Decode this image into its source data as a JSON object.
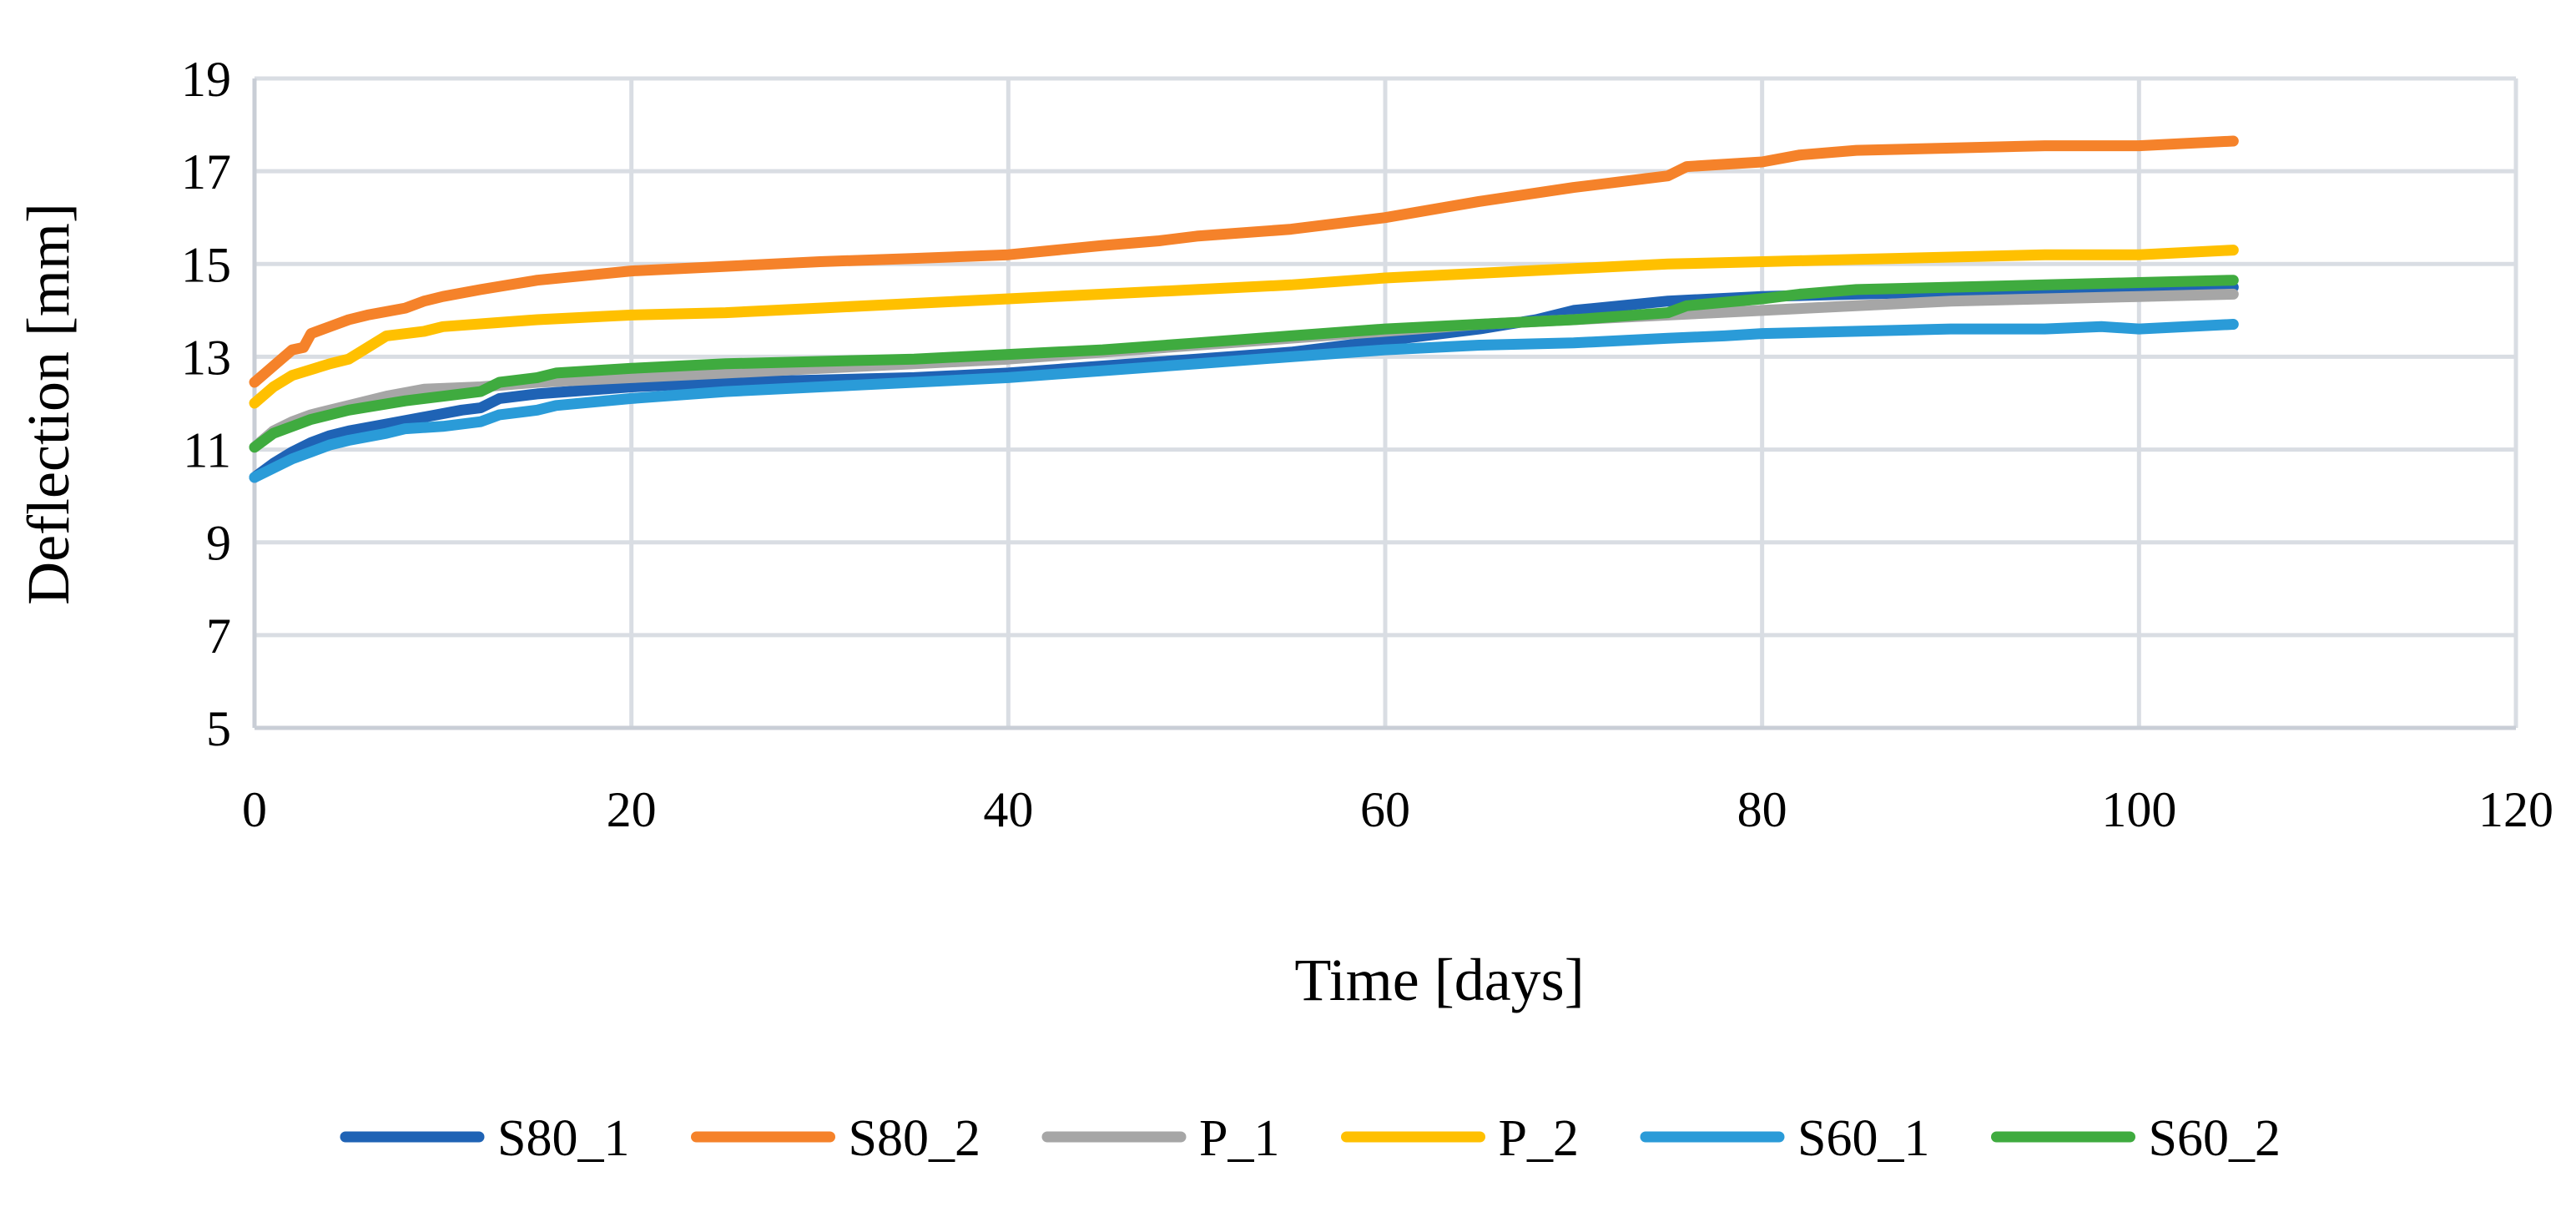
{
  "chart_data": {
    "type": "line",
    "title": "",
    "xlabel": "Time [days]",
    "ylabel": "Deflection [mm]",
    "xlim": [
      0,
      120
    ],
    "ylim": [
      5,
      19
    ],
    "xticks": [
      0,
      20,
      40,
      60,
      80,
      100,
      120
    ],
    "yticks": [
      5,
      7,
      9,
      11,
      13,
      15,
      17,
      19
    ],
    "grid": true,
    "legend_position": "bottom",
    "series": [
      {
        "name": "S80_1",
        "color": "#1f63b5",
        "points": [
          [
            0,
            10.4
          ],
          [
            1,
            10.7
          ],
          [
            2,
            10.95
          ],
          [
            3,
            11.15
          ],
          [
            4,
            11.3
          ],
          [
            5,
            11.4
          ],
          [
            7,
            11.55
          ],
          [
            9,
            11.7
          ],
          [
            11,
            11.85
          ],
          [
            12,
            11.9
          ],
          [
            13,
            12.1
          ],
          [
            15,
            12.2
          ],
          [
            20,
            12.35
          ],
          [
            25,
            12.45
          ],
          [
            30,
            12.5
          ],
          [
            35,
            12.55
          ],
          [
            40,
            12.65
          ],
          [
            45,
            12.8
          ],
          [
            50,
            12.95
          ],
          [
            55,
            13.1
          ],
          [
            60,
            13.35
          ],
          [
            65,
            13.6
          ],
          [
            68,
            13.8
          ],
          [
            70,
            14.0
          ],
          [
            75,
            14.2
          ],
          [
            80,
            14.3
          ],
          [
            85,
            14.35
          ],
          [
            90,
            14.4
          ],
          [
            95,
            14.45
          ],
          [
            100,
            14.5
          ],
          [
            105,
            14.5
          ]
        ]
      },
      {
        "name": "S80_2",
        "color": "#f5822a",
        "points": [
          [
            0,
            12.45
          ],
          [
            1,
            12.8
          ],
          [
            2,
            13.15
          ],
          [
            2.6,
            13.2
          ],
          [
            3,
            13.5
          ],
          [
            4,
            13.65
          ],
          [
            5,
            13.8
          ],
          [
            6,
            13.9
          ],
          [
            8,
            14.05
          ],
          [
            9,
            14.2
          ],
          [
            10,
            14.3
          ],
          [
            12,
            14.45
          ],
          [
            15,
            14.65
          ],
          [
            20,
            14.85
          ],
          [
            25,
            14.95
          ],
          [
            30,
            15.05
          ],
          [
            35,
            15.12
          ],
          [
            40,
            15.2
          ],
          [
            45,
            15.4
          ],
          [
            48,
            15.5
          ],
          [
            50,
            15.6
          ],
          [
            55,
            15.75
          ],
          [
            60,
            16.0
          ],
          [
            65,
            16.35
          ],
          [
            70,
            16.65
          ],
          [
            75,
            16.9
          ],
          [
            76,
            17.1
          ],
          [
            80,
            17.2
          ],
          [
            82,
            17.35
          ],
          [
            85,
            17.45
          ],
          [
            90,
            17.5
          ],
          [
            95,
            17.55
          ],
          [
            100,
            17.55
          ],
          [
            105,
            17.65
          ]
        ]
      },
      {
        "name": "P_1",
        "color": "#a6a6a6",
        "points": [
          [
            0,
            11.05
          ],
          [
            1,
            11.4
          ],
          [
            2,
            11.6
          ],
          [
            3,
            11.75
          ],
          [
            4,
            11.85
          ],
          [
            5,
            11.95
          ],
          [
            7,
            12.15
          ],
          [
            9,
            12.3
          ],
          [
            12,
            12.35
          ],
          [
            15,
            12.45
          ],
          [
            20,
            12.55
          ],
          [
            25,
            12.65
          ],
          [
            30,
            12.75
          ],
          [
            35,
            12.85
          ],
          [
            40,
            12.95
          ],
          [
            45,
            13.1
          ],
          [
            50,
            13.25
          ],
          [
            55,
            13.4
          ],
          [
            60,
            13.55
          ],
          [
            65,
            13.7
          ],
          [
            70,
            13.8
          ],
          [
            75,
            13.9
          ],
          [
            80,
            14.0
          ],
          [
            85,
            14.1
          ],
          [
            90,
            14.2
          ],
          [
            95,
            14.25
          ],
          [
            100,
            14.3
          ],
          [
            105,
            14.35
          ]
        ]
      },
      {
        "name": "P_2",
        "color": "#ffc000",
        "points": [
          [
            0,
            12.0
          ],
          [
            1,
            12.35
          ],
          [
            2,
            12.6
          ],
          [
            4,
            12.85
          ],
          [
            5,
            12.95
          ],
          [
            6,
            13.2
          ],
          [
            7,
            13.45
          ],
          [
            9,
            13.55
          ],
          [
            10,
            13.65
          ],
          [
            15,
            13.8
          ],
          [
            20,
            13.9
          ],
          [
            25,
            13.95
          ],
          [
            30,
            14.05
          ],
          [
            35,
            14.15
          ],
          [
            40,
            14.25
          ],
          [
            45,
            14.35
          ],
          [
            50,
            14.45
          ],
          [
            55,
            14.55
          ],
          [
            60,
            14.7
          ],
          [
            65,
            14.8
          ],
          [
            70,
            14.9
          ],
          [
            75,
            15.0
          ],
          [
            80,
            15.05
          ],
          [
            85,
            15.1
          ],
          [
            90,
            15.15
          ],
          [
            95,
            15.2
          ],
          [
            100,
            15.2
          ],
          [
            105,
            15.3
          ]
        ]
      },
      {
        "name": "S60_1",
        "color": "#2a9bd8",
        "points": [
          [
            0,
            10.4
          ],
          [
            1,
            10.6
          ],
          [
            2,
            10.8
          ],
          [
            3,
            10.95
          ],
          [
            4,
            11.1
          ],
          [
            5,
            11.2
          ],
          [
            7,
            11.35
          ],
          [
            8,
            11.45
          ],
          [
            10,
            11.5
          ],
          [
            12,
            11.6
          ],
          [
            13,
            11.75
          ],
          [
            15,
            11.85
          ],
          [
            16,
            11.95
          ],
          [
            20,
            12.1
          ],
          [
            25,
            12.25
          ],
          [
            30,
            12.35
          ],
          [
            35,
            12.45
          ],
          [
            40,
            12.55
          ],
          [
            45,
            12.7
          ],
          [
            50,
            12.85
          ],
          [
            55,
            13.0
          ],
          [
            60,
            13.15
          ],
          [
            65,
            13.25
          ],
          [
            70,
            13.3
          ],
          [
            75,
            13.4
          ],
          [
            78,
            13.45
          ],
          [
            80,
            13.5
          ],
          [
            85,
            13.55
          ],
          [
            90,
            13.6
          ],
          [
            95,
            13.6
          ],
          [
            98,
            13.65
          ],
          [
            100,
            13.6
          ],
          [
            105,
            13.7
          ]
        ]
      },
      {
        "name": "S60_2",
        "color": "#3fab3f",
        "points": [
          [
            0,
            11.05
          ],
          [
            1,
            11.35
          ],
          [
            2,
            11.5
          ],
          [
            3,
            11.65
          ],
          [
            5,
            11.85
          ],
          [
            8,
            12.05
          ],
          [
            10,
            12.15
          ],
          [
            12,
            12.25
          ],
          [
            13,
            12.45
          ],
          [
            15,
            12.55
          ],
          [
            16,
            12.65
          ],
          [
            20,
            12.75
          ],
          [
            25,
            12.85
          ],
          [
            30,
            12.9
          ],
          [
            35,
            12.95
          ],
          [
            40,
            13.05
          ],
          [
            45,
            13.15
          ],
          [
            50,
            13.3
          ],
          [
            55,
            13.45
          ],
          [
            60,
            13.6
          ],
          [
            65,
            13.7
          ],
          [
            70,
            13.8
          ],
          [
            75,
            13.95
          ],
          [
            76,
            14.1
          ],
          [
            80,
            14.25
          ],
          [
            82,
            14.35
          ],
          [
            85,
            14.45
          ],
          [
            90,
            14.5
          ],
          [
            95,
            14.55
          ],
          [
            100,
            14.6
          ],
          [
            105,
            14.65
          ]
        ]
      }
    ]
  }
}
